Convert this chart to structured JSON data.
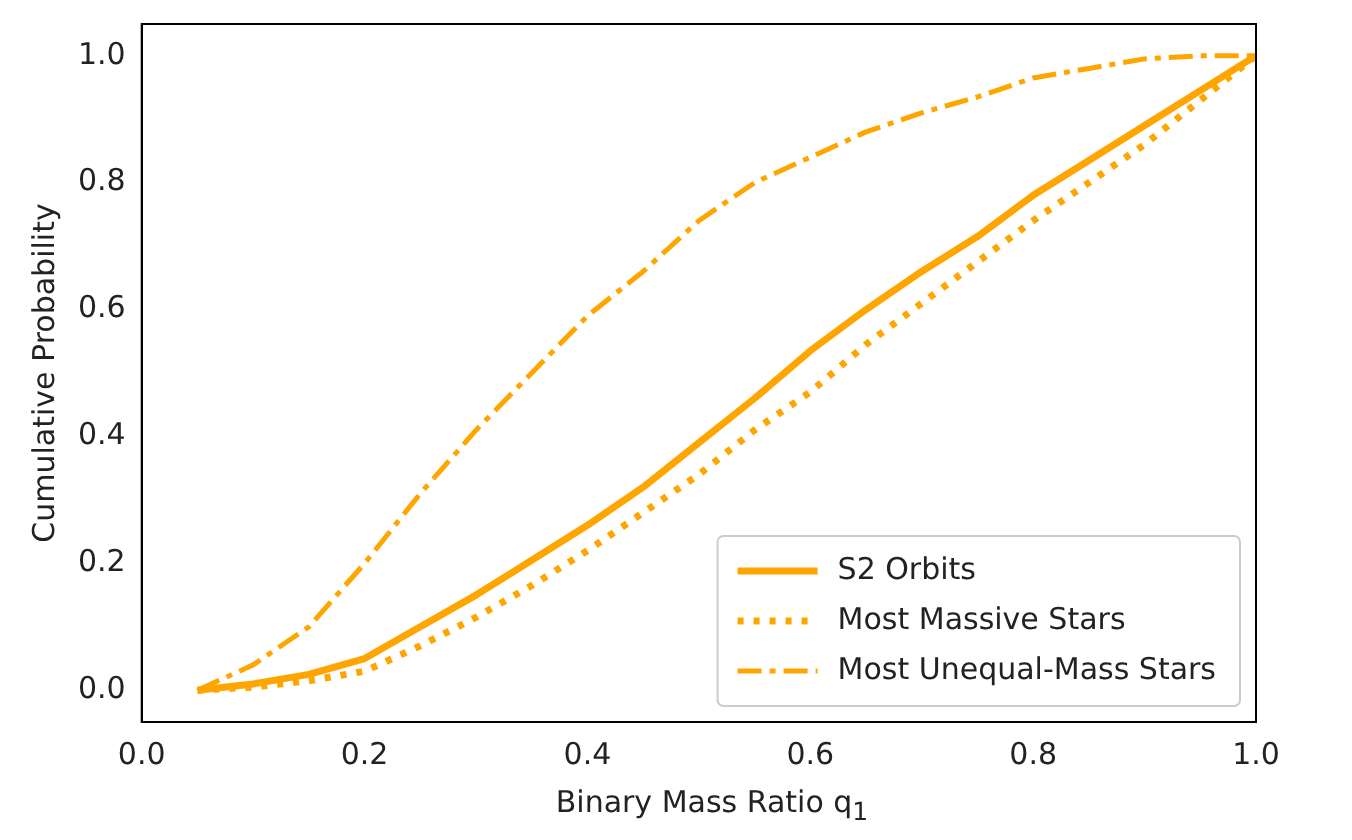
{
  "chart_data": {
    "type": "line",
    "xlabel": "Binary Mass Ratio q$_{1}$",
    "ylabel": "Cumulative Probability",
    "x": [
      0.05,
      0.1,
      0.15,
      0.2,
      0.25,
      0.3,
      0.35,
      0.4,
      0.45,
      0.5,
      0.55,
      0.6,
      0.65,
      0.7,
      0.75,
      0.8,
      0.85,
      0.9,
      0.95,
      1.0
    ],
    "series": [
      {
        "name": "S2 Orbits",
        "color": "#ffa500",
        "line_style": "solid",
        "values": [
          0,
          0.01,
          0.025,
          0.05,
          0.1,
          0.15,
          0.205,
          0.26,
          0.32,
          0.39,
          0.46,
          0.535,
          0.6,
          0.66,
          0.715,
          0.78,
          0.835,
          0.89,
          0.945,
          1.0
        ]
      },
      {
        "name": "Most Massive Stars",
        "color": "#ffa500",
        "line_style": "dotted",
        "values": [
          0,
          0.005,
          0.015,
          0.03,
          0.07,
          0.115,
          0.165,
          0.22,
          0.28,
          0.34,
          0.41,
          0.47,
          0.545,
          0.61,
          0.675,
          0.74,
          0.8,
          0.86,
          0.93,
          1.0
        ]
      },
      {
        "name": "Most Unequal-Mass Stars",
        "color": "#ffa500",
        "line_style": "dashed",
        "values": [
          0,
          0.04,
          0.1,
          0.2,
          0.31,
          0.41,
          0.5,
          0.59,
          0.66,
          0.74,
          0.8,
          0.84,
          0.88,
          0.91,
          0.935,
          0.965,
          0.98,
          0.995,
          1.0,
          1.0
        ]
      }
    ],
    "xlim": [
      0,
      1
    ],
    "xticks": [
      {
        "value": 0,
        "label": "0.0"
      },
      0.2,
      0.4,
      0.6,
      0.8,
      {
        "value": 1,
        "label": "1.0"
      }
    ],
    "ylim": [
      -0.05,
      1.05
    ],
    "yticks": [
      {
        "value": 0,
        "label": "0.0"
      },
      0.2,
      0.4,
      0.6,
      0.8,
      {
        "value": 1,
        "label": "1.0"
      }
    ],
    "legend": "bottom right",
    "marker": "none"
  }
}
